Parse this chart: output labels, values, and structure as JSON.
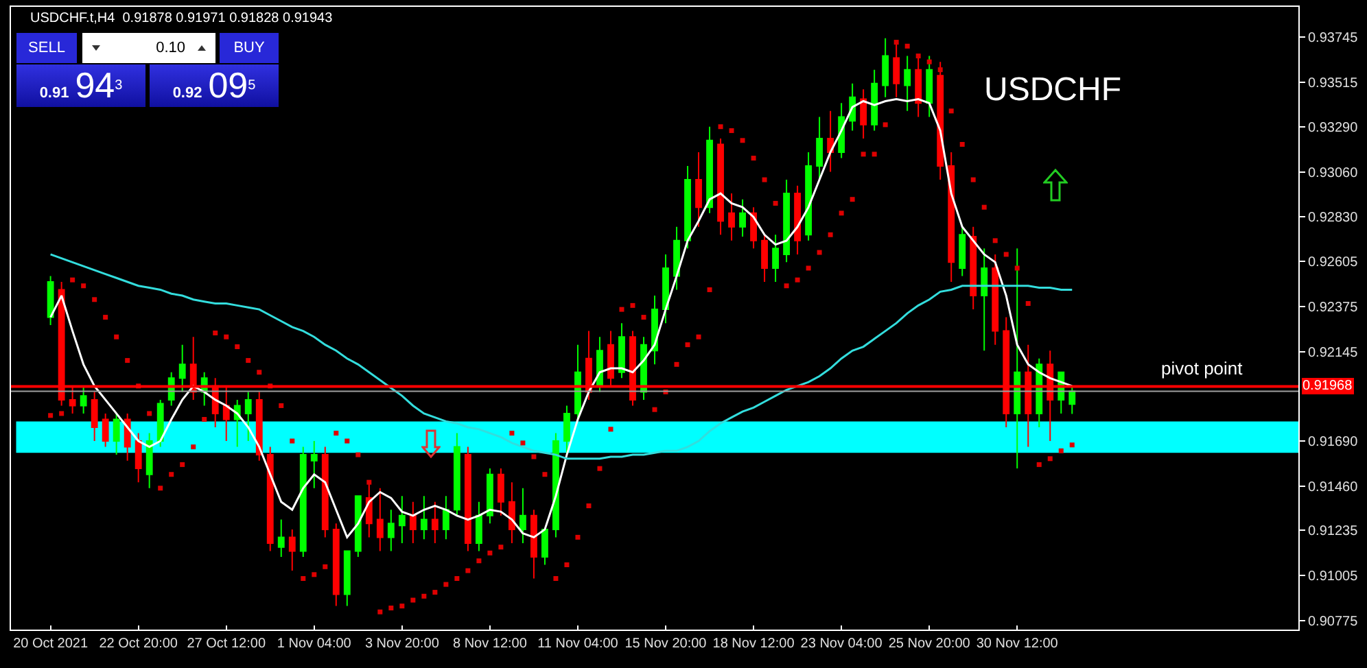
{
  "chart_data": {
    "type": "candlestick",
    "title": "USDCHF.t,H4  0.91878 0.91971 0.91828 0.91943",
    "categories": [
      "20 Oct 2021",
      null,
      null,
      null,
      null,
      null,
      null,
      null,
      "22 Oct 20:00",
      null,
      null,
      null,
      null,
      null,
      null,
      null,
      "27 Oct 12:00",
      null,
      null,
      null,
      null,
      null,
      null,
      null,
      "1 Nov 04:00",
      null,
      null,
      null,
      null,
      null,
      null,
      null,
      "3 Nov 20:00",
      null,
      null,
      null,
      null,
      null,
      null,
      null,
      "8 Nov 12:00",
      null,
      null,
      null,
      null,
      null,
      null,
      null,
      "11 Nov 04:00",
      null,
      null,
      null,
      null,
      null,
      null,
      null,
      "15 Nov 20:00",
      null,
      null,
      null,
      null,
      null,
      null,
      null,
      "18 Nov 12:00",
      null,
      null,
      null,
      null,
      null,
      null,
      null,
      "23 Nov 04:00",
      null,
      null,
      null,
      null,
      null,
      null,
      null,
      "25 Nov 20:00",
      null,
      null,
      null,
      null,
      null,
      null,
      null,
      "30 Nov 12:00",
      null,
      null,
      null,
      null,
      null
    ],
    "ohlc": [
      [
        0.9232,
        0.9253,
        0.9228,
        0.925
      ],
      [
        0.9246,
        0.925,
        0.9187,
        0.919
      ],
      [
        0.919,
        0.9197,
        0.9183,
        0.9187
      ],
      [
        0.9187,
        0.9197,
        0.9183,
        0.9192
      ],
      [
        0.919,
        0.9194,
        0.9169,
        0.9176
      ],
      [
        0.918,
        0.9183,
        0.9166,
        0.9169
      ],
      [
        0.9169,
        0.9183,
        0.9162,
        0.918
      ],
      [
        0.918,
        0.9183,
        0.9159,
        0.9166
      ],
      [
        0.9169,
        0.9173,
        0.9148,
        0.9155
      ],
      [
        0.9152,
        0.9173,
        0.9145,
        0.9169
      ],
      [
        0.9169,
        0.919,
        0.9166,
        0.9188
      ],
      [
        0.919,
        0.9204,
        0.9187,
        0.9201
      ],
      [
        0.9201,
        0.9218,
        0.9194,
        0.9208
      ],
      [
        0.9208,
        0.9222,
        0.919,
        0.9194
      ],
      [
        0.9194,
        0.9204,
        0.9187,
        0.9201
      ],
      [
        0.9197,
        0.9201,
        0.9176,
        0.9183
      ],
      [
        0.9187,
        0.9197,
        0.9169,
        0.918
      ],
      [
        0.918,
        0.919,
        0.9166,
        0.9187
      ],
      [
        0.9183,
        0.9194,
        0.9169,
        0.919
      ],
      [
        0.919,
        0.9194,
        0.9159,
        0.9162
      ],
      [
        0.9162,
        0.9166,
        0.9113,
        0.9117
      ],
      [
        0.9115,
        0.9129,
        0.911,
        0.912
      ],
      [
        0.912,
        0.9124,
        0.9103,
        0.9113
      ],
      [
        0.9113,
        0.9166,
        0.911,
        0.9162
      ],
      [
        0.9159,
        0.9169,
        0.9145,
        0.9162
      ],
      [
        0.9162,
        0.9166,
        0.912,
        0.9124
      ],
      [
        0.9124,
        0.9127,
        0.9085,
        0.9091
      ],
      [
        0.9091,
        0.9113,
        0.9085,
        0.9113
      ],
      [
        0.9113,
        0.9141,
        0.911,
        0.9141
      ],
      [
        0.914,
        0.9148,
        0.912,
        0.9127
      ],
      [
        0.9129,
        0.9145,
        0.9113,
        0.912
      ],
      [
        0.912,
        0.9134,
        0.9113,
        0.9127
      ],
      [
        0.9126,
        0.9141,
        0.9117,
        0.9131
      ],
      [
        0.9131,
        0.9138,
        0.9117,
        0.9124
      ],
      [
        0.9124,
        0.9141,
        0.9119,
        0.9129
      ],
      [
        0.9129,
        0.9138,
        0.9117,
        0.9124
      ],
      [
        0.9124,
        0.9141,
        0.9119,
        0.9134
      ],
      [
        0.9134,
        0.9173,
        0.9131,
        0.9166
      ],
      [
        0.9162,
        0.9166,
        0.9113,
        0.9117
      ],
      [
        0.9117,
        0.9138,
        0.9113,
        0.9131
      ],
      [
        0.9131,
        0.9155,
        0.9127,
        0.9152
      ],
      [
        0.9152,
        0.9155,
        0.9131,
        0.9138
      ],
      [
        0.9138,
        0.9148,
        0.9117,
        0.9124
      ],
      [
        0.9124,
        0.9145,
        0.9117,
        0.9131
      ],
      [
        0.9131,
        0.9134,
        0.9099,
        0.911
      ],
      [
        0.911,
        0.9124,
        0.9106,
        0.9124
      ],
      [
        0.9124,
        0.9173,
        0.912,
        0.9169
      ],
      [
        0.9169,
        0.9187,
        0.9162,
        0.9183
      ],
      [
        0.9183,
        0.9218,
        0.918,
        0.9204
      ],
      [
        0.9211,
        0.9225,
        0.919,
        0.9194
      ],
      [
        0.9197,
        0.9222,
        0.9194,
        0.9215
      ],
      [
        0.9218,
        0.9225,
        0.9197,
        0.9201
      ],
      [
        0.9204,
        0.9229,
        0.9201,
        0.9222
      ],
      [
        0.9222,
        0.9225,
        0.9187,
        0.919
      ],
      [
        0.9194,
        0.9222,
        0.919,
        0.9218
      ],
      [
        0.9215,
        0.9243,
        0.9208,
        0.9236
      ],
      [
        0.9236,
        0.9264,
        0.9229,
        0.9257
      ],
      [
        0.9253,
        0.9278,
        0.9246,
        0.9271
      ],
      [
        0.9271,
        0.9309,
        0.9267,
        0.9302
      ],
      [
        0.9302,
        0.9316,
        0.9278,
        0.9288
      ],
      [
        0.9288,
        0.9329,
        0.9285,
        0.9322
      ],
      [
        0.932,
        0.9323,
        0.9274,
        0.9281
      ],
      [
        0.9285,
        0.9295,
        0.9271,
        0.9278
      ],
      [
        0.9278,
        0.9292,
        0.9273,
        0.9285
      ],
      [
        0.9285,
        0.9288,
        0.9267,
        0.9271
      ],
      [
        0.9271,
        0.9274,
        0.925,
        0.9257
      ],
      [
        0.9257,
        0.9274,
        0.925,
        0.9267
      ],
      [
        0.9264,
        0.9302,
        0.926,
        0.9295
      ],
      [
        0.9295,
        0.9299,
        0.9264,
        0.9271
      ],
      [
        0.9274,
        0.9316,
        0.9271,
        0.9309
      ],
      [
        0.9309,
        0.9334,
        0.9302,
        0.9323
      ],
      [
        0.9323,
        0.9337,
        0.9306,
        0.9316
      ],
      [
        0.9316,
        0.9341,
        0.9313,
        0.9334
      ],
      [
        0.9332,
        0.9351,
        0.9327,
        0.9344
      ],
      [
        0.9343,
        0.9348,
        0.9323,
        0.933
      ],
      [
        0.933,
        0.9358,
        0.9327,
        0.9351
      ],
      [
        0.935,
        0.9374,
        0.9344,
        0.9365
      ],
      [
        0.9364,
        0.9372,
        0.9344,
        0.9351
      ],
      [
        0.935,
        0.9365,
        0.9337,
        0.9358
      ],
      [
        0.9358,
        0.9365,
        0.9334,
        0.9341
      ],
      [
        0.9341,
        0.9365,
        0.9334,
        0.9358
      ],
      [
        0.9355,
        0.9362,
        0.9302,
        0.9309
      ],
      [
        0.9309,
        0.9316,
        0.925,
        0.926
      ],
      [
        0.9257,
        0.9278,
        0.9253,
        0.9274
      ],
      [
        0.9273,
        0.9278,
        0.9236,
        0.9243
      ],
      [
        0.9243,
        0.9267,
        0.9215,
        0.9257
      ],
      [
        0.9257,
        0.9264,
        0.9218,
        0.9225
      ],
      [
        0.9225,
        0.9232,
        0.9176,
        0.9183
      ],
      [
        0.9183,
        0.9267,
        0.9155,
        0.9204
      ],
      [
        0.9204,
        0.9218,
        0.9166,
        0.9183
      ],
      [
        0.9183,
        0.9211,
        0.9176,
        0.9208
      ],
      [
        0.9208,
        0.9215,
        0.9169,
        0.919
      ],
      [
        0.919,
        0.9204,
        0.9183,
        0.9204
      ],
      [
        0.91878,
        0.91971,
        0.91828,
        0.91943
      ]
    ],
    "colors": [
      "#00ff00",
      "#ff0000",
      "#ff0000",
      "#00ff00",
      "#ff0000",
      "#ff0000",
      "#00ff00",
      "#ff0000",
      "#ff0000",
      "#00ff00",
      "#00ff00",
      "#00ff00",
      "#00ff00",
      "#ff0000",
      "#00ff00",
      "#ff0000",
      "#ff0000",
      "#00ff00",
      "#00ff00",
      "#ff0000",
      "#ff0000",
      "#00ff00",
      "#ff0000",
      "#00ff00",
      "#00ff00",
      "#ff0000",
      "#ff0000",
      "#00ff00",
      "#00ff00",
      "#ff0000",
      "#ff0000",
      "#00ff00",
      "#00ff00",
      "#ff0000",
      "#00ff00",
      "#ff0000",
      "#00ff00",
      "#00ff00",
      "#ff0000",
      "#00ff00",
      "#00ff00",
      "#ff0000",
      "#ff0000",
      "#00ff00",
      "#ff0000",
      "#00ff00",
      "#00ff00",
      "#00ff00",
      "#00ff00",
      "#ff0000",
      "#00ff00",
      "#ff0000",
      "#00ff00",
      "#ff0000",
      "#00ff00",
      "#00ff00",
      "#00ff00",
      "#00ff00",
      "#00ff00",
      "#ff0000",
      "#00ff00",
      "#ff0000",
      "#ff0000",
      "#00ff00",
      "#ff0000",
      "#ff0000",
      "#00ff00",
      "#00ff00",
      "#ff0000",
      "#00ff00",
      "#00ff00",
      "#ff0000",
      "#00ff00",
      "#00ff00",
      "#ff0000",
      "#00ff00",
      "#00ff00",
      "#ff0000",
      "#00ff00",
      "#ff0000",
      "#00ff00",
      "#ff0000",
      "#ff0000",
      "#00ff00",
      "#ff0000",
      "#00ff00",
      "#ff0000",
      "#ff0000",
      "#00ff00",
      "#ff0000",
      "#00ff00",
      "#ff0000",
      "#00ff00",
      "#00ff00"
    ],
    "series": [
      {
        "type": "line",
        "color": "#ffffff",
        "values": [
          0.9232,
          0.9243,
          0.9225,
          0.9208,
          0.9197,
          0.919,
          0.9183,
          0.9176,
          0.9169,
          0.9166,
          0.9169,
          0.918,
          0.919,
          0.9197,
          0.9194,
          0.919,
          0.9187,
          0.9183,
          0.9176,
          0.9166,
          0.9152,
          0.9138,
          0.9134,
          0.9145,
          0.9152,
          0.9148,
          0.9134,
          0.912,
          0.9127,
          0.9138,
          0.9143,
          0.914,
          0.9133,
          0.9131,
          0.9134,
          0.9136,
          0.9134,
          0.9131,
          0.9129,
          0.9131,
          0.9134,
          0.9133,
          0.9129,
          0.9122,
          0.912,
          0.9124,
          0.9141,
          0.9162,
          0.918,
          0.9194,
          0.9204,
          0.9206,
          0.9206,
          0.9204,
          0.921,
          0.9218,
          0.9236,
          0.9253,
          0.9271,
          0.9281,
          0.9292,
          0.9295,
          0.929,
          0.9288,
          0.9283,
          0.9274,
          0.9269,
          0.9271,
          0.9278,
          0.9288,
          0.9302,
          0.9316,
          0.9327,
          0.9339,
          0.9342,
          0.934,
          0.9342,
          0.9343,
          0.9342,
          0.9343,
          0.9341,
          0.9327,
          0.9295,
          0.9278,
          0.9271,
          0.9264,
          0.926,
          0.9243,
          0.9218,
          0.9208,
          0.9204,
          0.9201,
          0.9199,
          0.9197
        ]
      },
      {
        "type": "line",
        "color": "#33dddd",
        "values": [
          0.9264,
          0.9262,
          0.926,
          0.9258,
          0.9256,
          0.9254,
          0.9252,
          0.925,
          0.9248,
          0.9247,
          0.9246,
          0.9244,
          0.9243,
          0.9241,
          0.924,
          0.9239,
          0.9239,
          0.9238,
          0.9237,
          0.9236,
          0.9233,
          0.923,
          0.9227,
          0.9225,
          0.9222,
          0.9218,
          0.9215,
          0.9211,
          0.9208,
          0.9204,
          0.92,
          0.9196,
          0.9192,
          0.9187,
          0.9183,
          0.9181,
          0.9179,
          0.9178,
          0.9176,
          0.9175,
          0.9173,
          0.9171,
          0.9168,
          0.9166,
          0.9164,
          0.9163,
          0.9162,
          0.916,
          0.916,
          0.916,
          0.916,
          0.9161,
          0.9161,
          0.9162,
          0.9162,
          0.9163,
          0.9164,
          0.9164,
          0.9166,
          0.9169,
          0.9174,
          0.9178,
          0.9181,
          0.9184,
          0.9186,
          0.9189,
          0.9192,
          0.9195,
          0.9197,
          0.9199,
          0.9202,
          0.9206,
          0.9211,
          0.9215,
          0.9217,
          0.9221,
          0.9225,
          0.9229,
          0.9234,
          0.9238,
          0.9241,
          0.9245,
          0.9246,
          0.9248,
          0.9248,
          0.9248,
          0.9248,
          0.9248,
          0.9248,
          0.9248,
          0.9247,
          0.9247,
          0.9246,
          0.9246
        ]
      },
      {
        "type": "scatter",
        "color": "#dd0000",
        "marker": "square",
        "values": [
          0.9182,
          0.9183,
          0.9251,
          0.9248,
          0.9241,
          0.9232,
          0.9222,
          0.921,
          0.9197,
          0.9183,
          0.9145,
          0.9152,
          0.9157,
          0.9166,
          0.918,
          0.9224,
          0.9222,
          0.9217,
          0.921,
          0.9204,
          0.9197,
          0.9187,
          0.9169,
          0.9099,
          0.9101,
          0.9105,
          0.9173,
          0.9169,
          0.9162,
          0.9148,
          0.9082,
          0.9084,
          0.9085,
          0.9088,
          0.909,
          0.9092,
          0.9096,
          0.9099,
          0.9103,
          0.9108,
          0.9112,
          0.9115,
          0.9173,
          0.9168,
          0.9161,
          0.9152,
          0.9099,
          0.9106,
          0.912,
          0.9136,
          0.9155,
          0.9175,
          0.9236,
          0.9238,
          0.9232,
          0.9185,
          0.9194,
          0.9208,
          0.9218,
          0.9222,
          0.9246,
          0.9329,
          0.9327,
          0.9322,
          0.9313,
          0.9302,
          0.929,
          0.9248,
          0.9251,
          0.9257,
          0.9265,
          0.9274,
          0.9285,
          0.9292,
          0.9315,
          0.9315,
          0.933,
          0.9372,
          0.937,
          0.9365,
          0.9362,
          0.9358,
          0.9337,
          0.932,
          0.9302,
          0.9288,
          0.9271,
          0.9264,
          0.9257,
          0.9239,
          0.9157,
          0.916,
          0.9164,
          0.9167
        ]
      }
    ],
    "ylim": [
      0.9073,
      0.939
    ],
    "yticks": [
      {
        "value": 0.93745,
        "label": "0.93745"
      },
      {
        "value": 0.93515,
        "label": "0.93515"
      },
      {
        "value": 0.9329,
        "label": "0.93290"
      },
      {
        "value": 0.9306,
        "label": "0.93060"
      },
      {
        "value": 0.9283,
        "label": "0.92830"
      },
      {
        "value": 0.92605,
        "label": "0.92605"
      },
      {
        "value": 0.92375,
        "label": "0.92375"
      },
      {
        "value": 0.92145,
        "label": "0.92145"
      },
      {
        "value": 0.9169,
        "label": "0.91690"
      },
      {
        "value": 0.9146,
        "label": "0.91460"
      },
      {
        "value": 0.91235,
        "label": "0.91235"
      },
      {
        "value": 0.91005,
        "label": "0.91005"
      },
      {
        "value": 0.90775,
        "label": "0.90775"
      }
    ],
    "ref_lines": [
      {
        "axis": "y",
        "value": 0.91968,
        "label": "0.91968",
        "color": "#ff0000"
      },
      {
        "axis": "y",
        "value": 0.91943,
        "color": "#a0a0a0"
      }
    ],
    "bands": [
      {
        "axis": "y",
        "from": 0.9163,
        "to": 0.9179,
        "color": "#00ffff"
      }
    ],
    "annotations": [
      "USDCHF",
      "SELL",
      "0.10",
      "BUY",
      "0.91",
      "94",
      "3",
      "0.92",
      "09",
      "5",
      {
        "text": "pivot point",
        "y": 0.91968
      }
    ],
    "grid": false
  }
}
